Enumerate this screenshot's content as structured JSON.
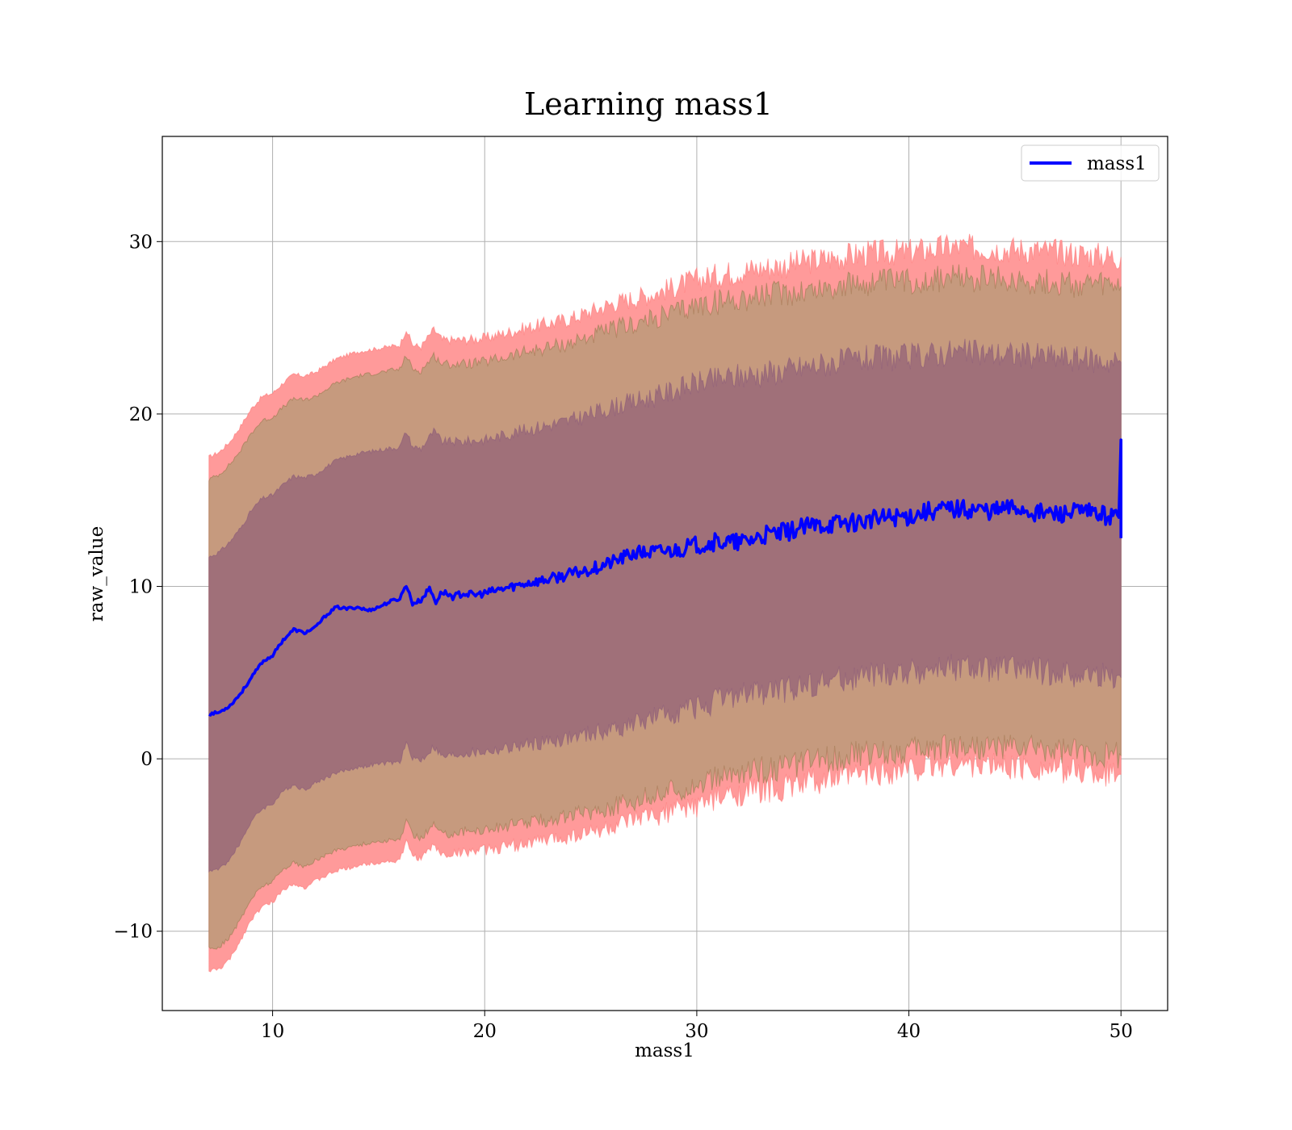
{
  "chart_data": {
    "type": "area",
    "title": "Learning mass1",
    "xlabel": "mass1",
    "ylabel": "raw_value",
    "xlim": [
      4.8,
      52.2
    ],
    "ylim": [
      -14.6,
      36.1
    ],
    "xticks": [
      10,
      20,
      30,
      40,
      50
    ],
    "yticks": [
      -10,
      0,
      10,
      20,
      30
    ],
    "xtick_labels": [
      "10",
      "20",
      "30",
      "40",
      "50"
    ],
    "ytick_labels": [
      "−10",
      "0",
      "10",
      "20",
      "30"
    ],
    "grid": true,
    "legend": {
      "placement": "top-right",
      "entries": [
        "mass1"
      ]
    },
    "colors": {
      "line": "#0000ff",
      "outer_band": "#ff9a9a",
      "middle_band": "#c69a7e",
      "inner_band": "#a07079",
      "outer_band_edge": "#ff7777",
      "middle_band_edge": "#9a7a4e",
      "inner_band_edge": "#8a5a7a"
    },
    "series": [
      {
        "name": "mass1",
        "x": [
          7,
          7.5,
          8,
          8.5,
          9,
          9.5,
          10,
          10.5,
          11,
          11.5,
          12,
          12.5,
          13,
          13.5,
          14,
          14.5,
          15,
          15.5,
          16,
          16.3,
          16.6,
          17,
          17.4,
          17.7,
          18,
          18.5,
          19,
          19.5,
          20,
          21,
          22,
          23,
          24,
          25,
          26,
          27,
          28,
          29,
          30,
          31,
          32,
          33,
          34,
          35,
          36,
          37,
          38,
          39,
          40,
          41,
          42,
          43,
          44,
          45,
          46,
          47,
          48,
          49,
          49.9,
          50
        ],
        "values": [
          2.6,
          2.7,
          3.1,
          3.8,
          4.7,
          5.6,
          6.0,
          6.9,
          7.5,
          7.3,
          7.6,
          8.3,
          8.8,
          8.7,
          8.8,
          8.6,
          8.8,
          9.1,
          9.3,
          10.1,
          9.0,
          9.2,
          9.9,
          9.1,
          9.7,
          9.4,
          9.6,
          9.5,
          9.6,
          9.9,
          10.2,
          10.4,
          10.7,
          11.0,
          11.4,
          11.9,
          12.0,
          12.1,
          12.4,
          12.6,
          12.5,
          12.9,
          13.1,
          13.4,
          13.6,
          13.7,
          13.8,
          14.0,
          14.1,
          14.4,
          14.5,
          14.5,
          14.4,
          14.6,
          14.3,
          14.2,
          14.3,
          14.2,
          14.0,
          18.5
        ]
      },
      {
        "name": "",
        "x": [
          7,
          7.5,
          8,
          8.5,
          9,
          9.5,
          10,
          10.5,
          11,
          11.5,
          12,
          13,
          14,
          15,
          16,
          16.3,
          16.6,
          17,
          17.6,
          18,
          19,
          20,
          22,
          24,
          26,
          28,
          30,
          32,
          34,
          36,
          38,
          40,
          42,
          44,
          46,
          48,
          50
        ],
        "upper": [
          17.5,
          17.8,
          18.4,
          19.3,
          20.3,
          21.0,
          21.2,
          21.8,
          22.3,
          22.2,
          22.4,
          23.2,
          23.6,
          23.8,
          24.0,
          24.9,
          24.0,
          23.9,
          24.9,
          24.3,
          24.3,
          24.4,
          25.0,
          25.5,
          26.4,
          27.0,
          27.8,
          28.3,
          28.6,
          29.0,
          29.3,
          29.4,
          29.7,
          29.6,
          29.5,
          29.3,
          29.1
        ],
        "lower": [
          -12.3,
          -12.2,
          -11.6,
          -10.5,
          -9.3,
          -8.6,
          -8.3,
          -7.6,
          -7.2,
          -7.5,
          -7.1,
          -6.5,
          -6.2,
          -6.0,
          -5.9,
          -4.8,
          -5.6,
          -5.8,
          -5.0,
          -5.6,
          -5.4,
          -5.3,
          -4.9,
          -4.5,
          -4.0,
          -3.3,
          -2.7,
          -2.0,
          -1.7,
          -1.2,
          -0.9,
          -0.6,
          -0.3,
          -0.4,
          -0.5,
          -0.7,
          -0.9
        ]
      },
      {
        "name": "",
        "x": [
          7,
          7.5,
          8,
          8.5,
          9,
          9.5,
          10,
          10.5,
          11,
          11.5,
          12,
          13,
          14,
          15,
          16,
          16.3,
          16.6,
          17,
          17.6,
          18,
          19,
          20,
          22,
          24,
          26,
          28,
          30,
          32,
          34,
          36,
          38,
          40,
          42,
          44,
          46,
          48,
          50
        ],
        "upper": [
          16.2,
          16.5,
          17.1,
          17.9,
          18.9,
          19.6,
          19.8,
          20.4,
          20.9,
          20.8,
          21.0,
          21.8,
          22.2,
          22.4,
          22.6,
          23.4,
          22.6,
          22.5,
          23.4,
          22.9,
          22.9,
          23.0,
          23.6,
          24.1,
          24.9,
          25.5,
          26.3,
          26.7,
          27.0,
          27.3,
          27.6,
          27.7,
          27.9,
          27.8,
          27.7,
          27.5,
          27.4
        ],
        "lower": [
          -11.0,
          -10.9,
          -10.3,
          -9.3,
          -8.1,
          -7.4,
          -7.1,
          -6.4,
          -6.0,
          -6.3,
          -5.9,
          -5.3,
          -5.0,
          -4.8,
          -4.7,
          -3.6,
          -4.4,
          -4.6,
          -3.8,
          -4.4,
          -4.2,
          -4.1,
          -3.7,
          -3.3,
          -2.8,
          -2.1,
          -1.5,
          -0.8,
          -0.5,
          0.0,
          0.3,
          0.5,
          0.8,
          0.7,
          0.6,
          0.4,
          0.2
        ]
      },
      {
        "name": "",
        "x": [
          7,
          7.5,
          8,
          8.5,
          9,
          9.5,
          10,
          10.5,
          11,
          11.5,
          12,
          13,
          14,
          15,
          16,
          16.3,
          16.6,
          17,
          17.6,
          18,
          19,
          20,
          22,
          24,
          26,
          28,
          30,
          32,
          34,
          36,
          38,
          40,
          42,
          44,
          46,
          48,
          50
        ],
        "upper": [
          11.7,
          12.0,
          12.6,
          13.4,
          14.4,
          15.1,
          15.3,
          15.9,
          16.4,
          16.3,
          16.5,
          17.3,
          17.7,
          17.9,
          18.1,
          19.0,
          18.1,
          18.0,
          19.0,
          18.4,
          18.4,
          18.5,
          19.1,
          19.6,
          20.4,
          21.0,
          21.8,
          22.2,
          22.5,
          22.9,
          23.2,
          23.3,
          23.6,
          23.5,
          23.4,
          23.2,
          23.0
        ],
        "lower": [
          -6.5,
          -6.4,
          -5.8,
          -4.8,
          -3.6,
          -2.9,
          -2.6,
          -1.9,
          -1.5,
          -1.8,
          -1.4,
          -0.8,
          -0.5,
          -0.3,
          -0.2,
          0.9,
          0.1,
          -0.1,
          0.7,
          0.1,
          0.3,
          0.4,
          0.8,
          1.2,
          1.7,
          2.4,
          3.0,
          3.7,
          4.0,
          4.5,
          4.8,
          5.0,
          5.3,
          5.2,
          5.1,
          4.9,
          4.7
        ]
      }
    ]
  }
}
